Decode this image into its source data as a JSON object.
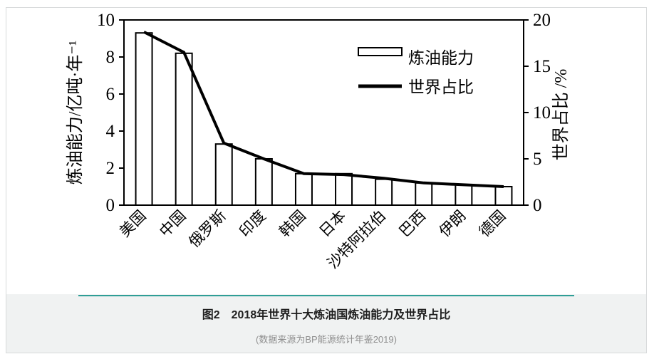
{
  "caption": {
    "title": "图2　2018年世界十大炼油国炼油能力及世界占比",
    "source": "(数据来源为BP能源统计年鉴2019)"
  },
  "theme": {
    "divider_color": "#2f9e96",
    "caption_bg": "#f0f2f2",
    "card_border": "#d8dadb"
  },
  "chart_data": {
    "type": "bar",
    "subtype": "bar+line combo",
    "categories": [
      "美国",
      "中国",
      "俄罗斯",
      "印度",
      "韩国",
      "日本",
      "沙特阿拉伯",
      "巴西",
      "伊朗",
      "德国"
    ],
    "series": [
      {
        "name": "炼油能力",
        "type": "bar",
        "axis": "left",
        "values": [
          9.3,
          8.2,
          3.3,
          2.5,
          1.7,
          1.7,
          1.4,
          1.2,
          1.1,
          1.0
        ]
      },
      {
        "name": "世界占比",
        "type": "line",
        "axis": "right",
        "values": [
          18.7,
          16.5,
          6.7,
          5.0,
          3.4,
          3.3,
          2.9,
          2.4,
          2.2,
          2.0
        ]
      }
    ],
    "left_axis": {
      "label": "炼油能力/亿吨·年⁻¹",
      "ticks": [
        0,
        2,
        4,
        6,
        8,
        10
      ],
      "range": [
        0,
        10
      ]
    },
    "right_axis": {
      "label": "世界占比 /%",
      "ticks": [
        0,
        5,
        10,
        15,
        20
      ],
      "range": [
        0,
        20
      ]
    },
    "legend": {
      "position": "top-right",
      "entries": [
        "炼油能力",
        "世界占比"
      ]
    },
    "grid": false,
    "colors": {
      "bar_fill": "#ffffff",
      "bar_stroke": "#000000",
      "line": "#000000",
      "axis": "#000000"
    }
  }
}
